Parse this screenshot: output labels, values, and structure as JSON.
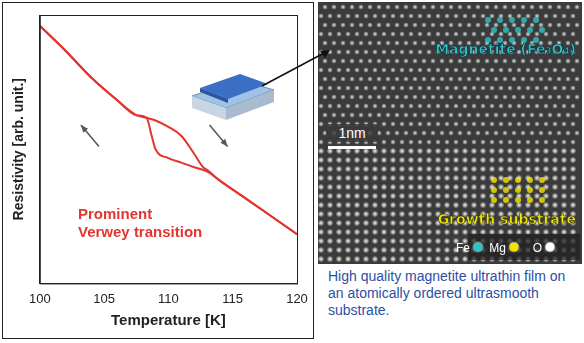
{
  "chart_data": {
    "type": "line",
    "x_label": "Temperature [K]",
    "y_label": "Resistivity [arb. unit.]",
    "xlim": [
      100,
      120
    ],
    "xticks": [
      100,
      105,
      110,
      115,
      120
    ],
    "ylim": [
      0,
      10
    ],
    "tick_labels": "x",
    "grid": false,
    "color": "#e3342f",
    "series": [
      {
        "x": [
          100,
          102,
          104,
          106,
          107.5,
          108.3,
          109,
          110,
          111,
          112,
          112.7,
          113,
          114,
          116,
          118,
          120
        ],
        "values": [
          9.6,
          8.67,
          7.67,
          6.83,
          6.27,
          6.17,
          6.07,
          5.83,
          5.5,
          4.83,
          4.33,
          4.23,
          3.83,
          3.17,
          2.5,
          1.83
        ]
      },
      {
        "x": [
          100,
          102,
          104,
          106,
          107.5,
          108.3,
          108.7,
          109,
          110,
          111,
          112,
          113,
          114,
          116,
          118,
          120
        ],
        "values": [
          9.6,
          8.67,
          7.67,
          6.83,
          6.27,
          6.17,
          5.5,
          5.0,
          4.67,
          4.5,
          4.33,
          4.17,
          3.83,
          3.17,
          2.5,
          1.83
        ]
      }
    ],
    "annotation_lines": [
      "Prominent",
      "Verwey transition"
    ]
  },
  "micrograph": {
    "film_label": "Magnetite (Fe₃O₄)",
    "substrate_label": "Growth substrate",
    "scale_bar": "1nm",
    "legend": [
      {
        "label": "Fe",
        "color": "#2fc4c4"
      },
      {
        "label": "Mg",
        "color": "#f2e600"
      },
      {
        "label": "O",
        "color": "#ffffff"
      }
    ]
  },
  "caption": "High quality magnetite ultrathin film on an atomically ordered ultrasmooth substrate."
}
